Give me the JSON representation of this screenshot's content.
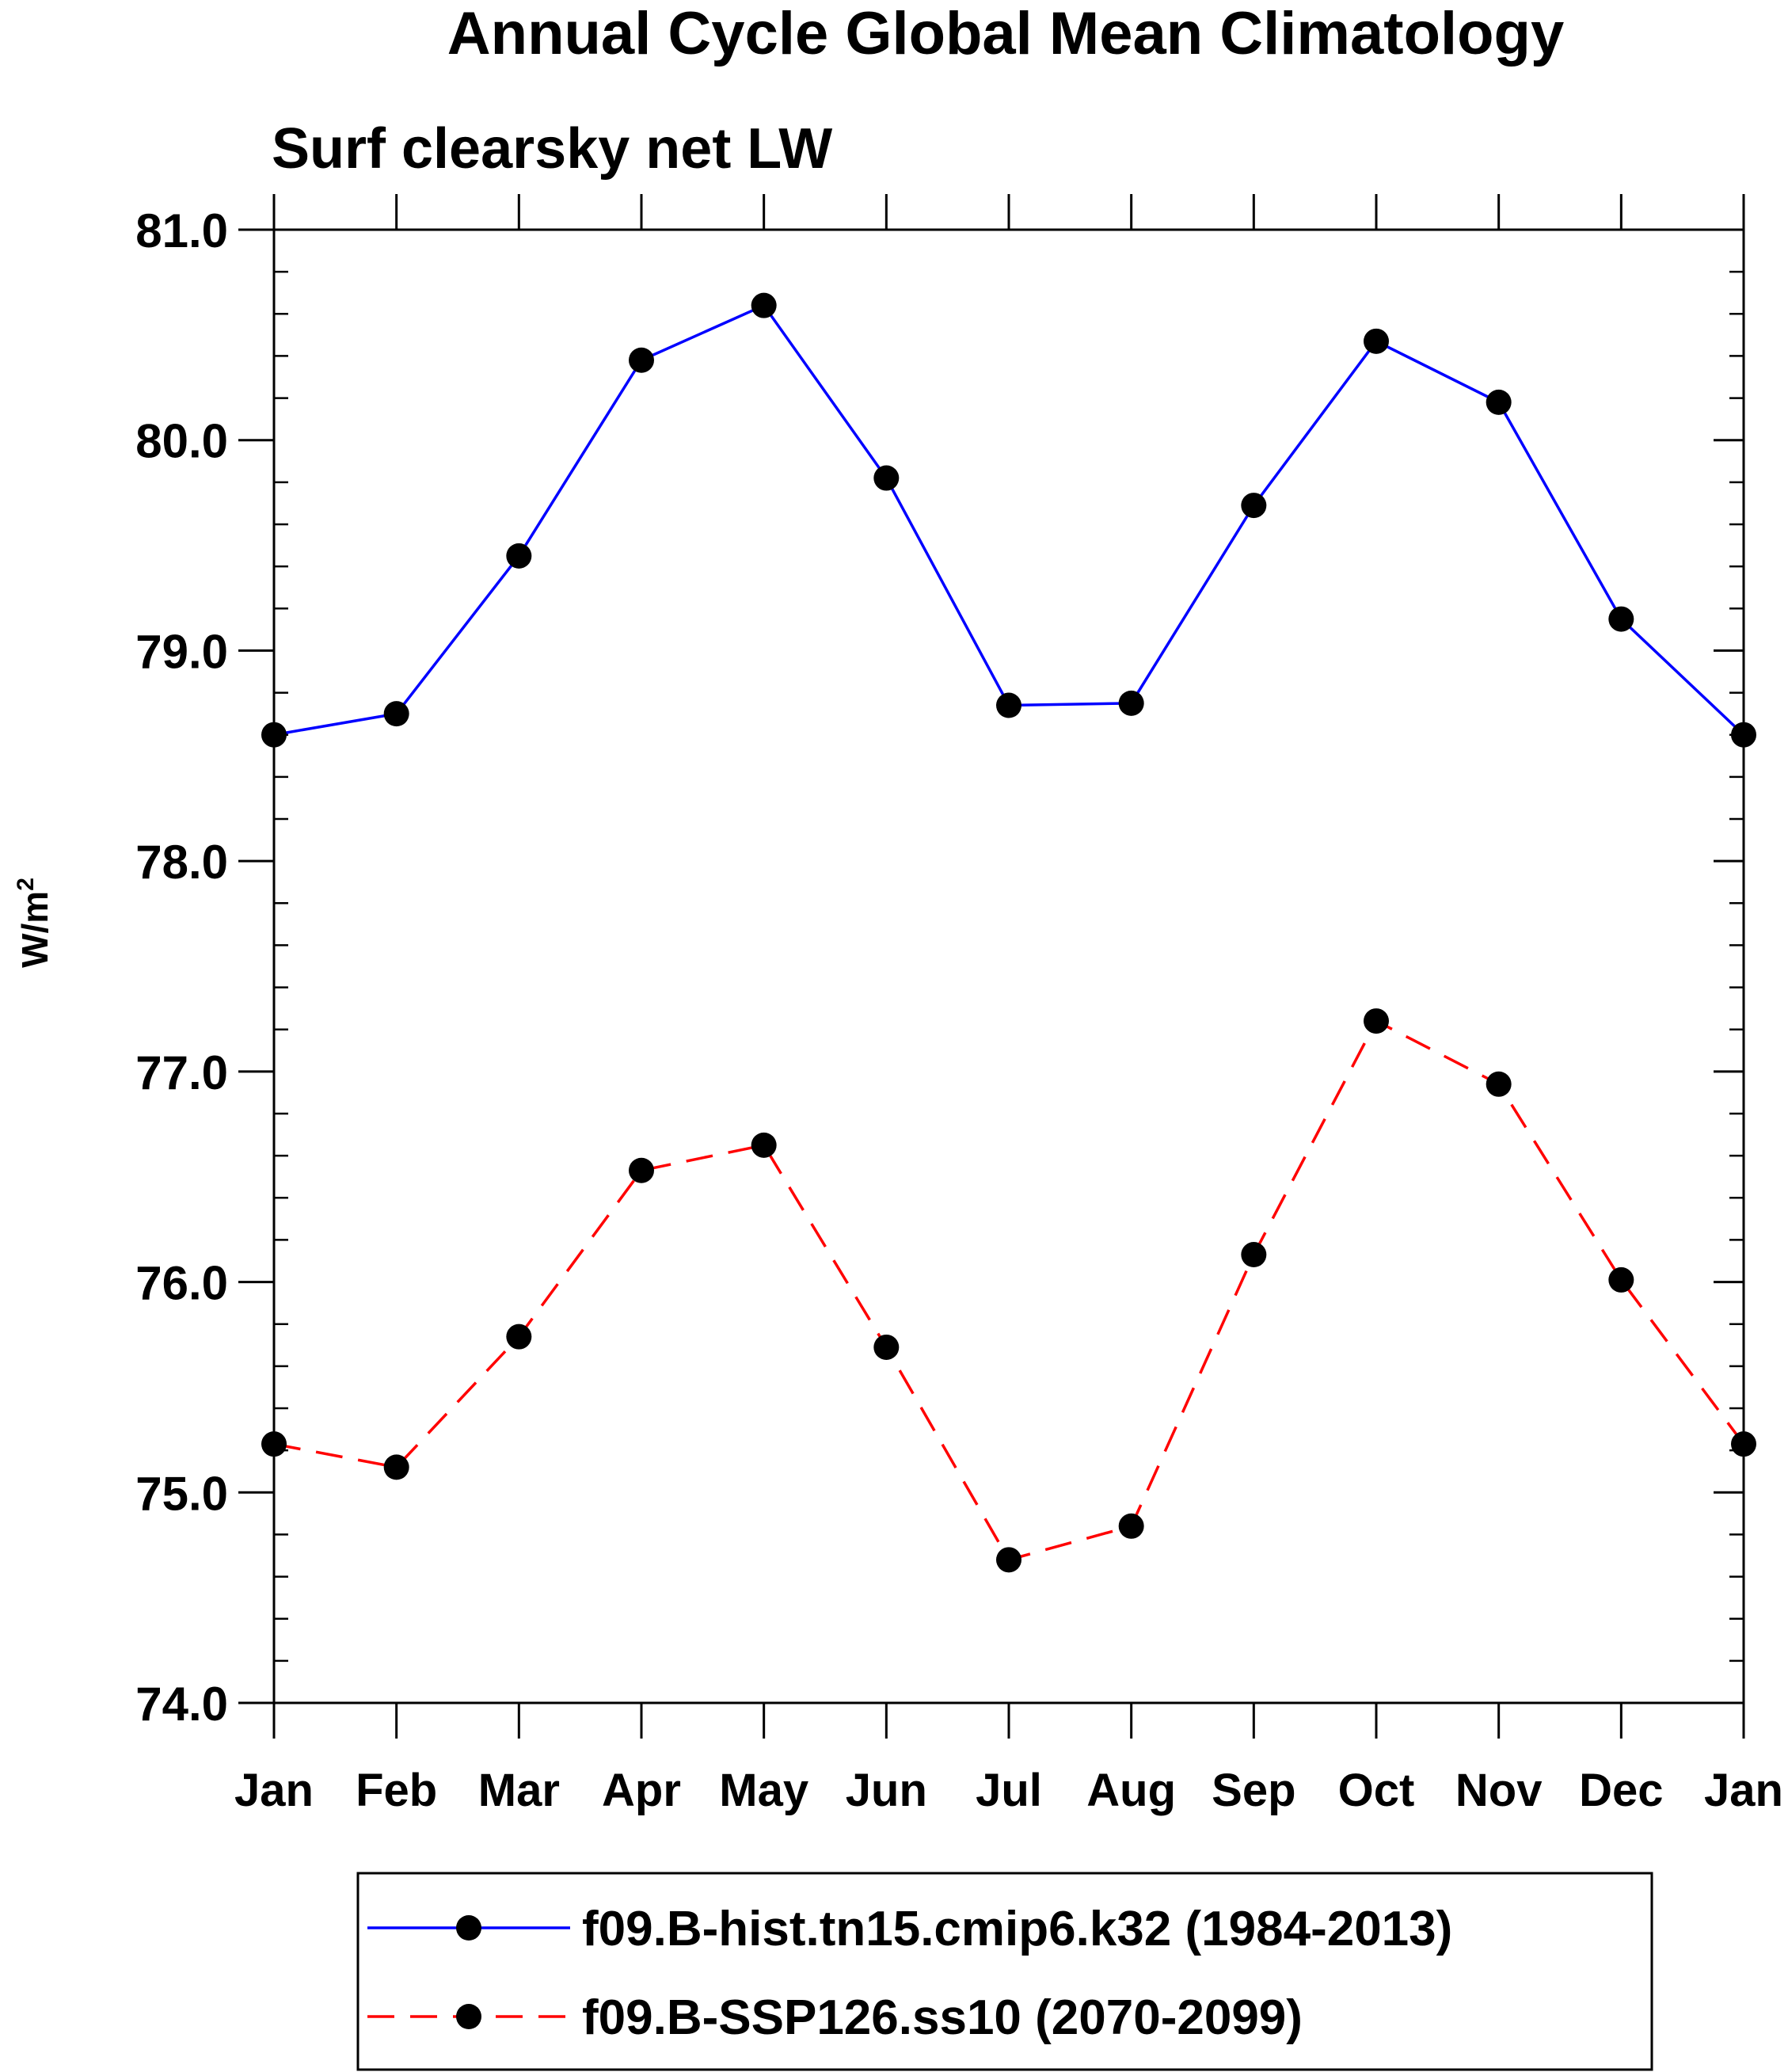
{
  "chart_data": {
    "type": "line",
    "title": "Annual Cycle Global Mean Climatology",
    "subtitle": "Surf clearsky net LW",
    "ylabel_main": "W/m",
    "ylabel_sup": "2",
    "xlabel": "",
    "ylim": [
      74.0,
      81.0
    ],
    "yticks": [
      74.0,
      75.0,
      76.0,
      77.0,
      78.0,
      79.0,
      80.0,
      81.0
    ],
    "ytick_labels": [
      "74.0",
      "75.0",
      "76.0",
      "77.0",
      "78.0",
      "79.0",
      "80.0",
      "81.0"
    ],
    "categories": [
      "Jan",
      "Feb",
      "Mar",
      "Apr",
      "May",
      "Jun",
      "Jul",
      "Aug",
      "Sep",
      "Oct",
      "Nov",
      "Dec",
      "Jan"
    ],
    "series": [
      {
        "name": "f09.B-hist.tn15.cmip6.k32 (1984-2013)",
        "color": "#0000ff",
        "dash": "solid",
        "marker_color": "#000000",
        "values": [
          78.6,
          78.7,
          79.45,
          80.38,
          80.64,
          79.82,
          78.74,
          78.75,
          79.69,
          80.47,
          80.18,
          79.15,
          78.6
        ]
      },
      {
        "name": "f09.B-SSP126.ss10 (2070-2099)",
        "color": "#ff0000",
        "dash": "dashed",
        "marker_color": "#000000",
        "values": [
          75.23,
          75.12,
          75.74,
          76.53,
          76.65,
          75.69,
          74.68,
          74.84,
          76.13,
          77.24,
          76.94,
          76.01,
          75.23
        ]
      }
    ],
    "legend_position": "bottom-center"
  }
}
